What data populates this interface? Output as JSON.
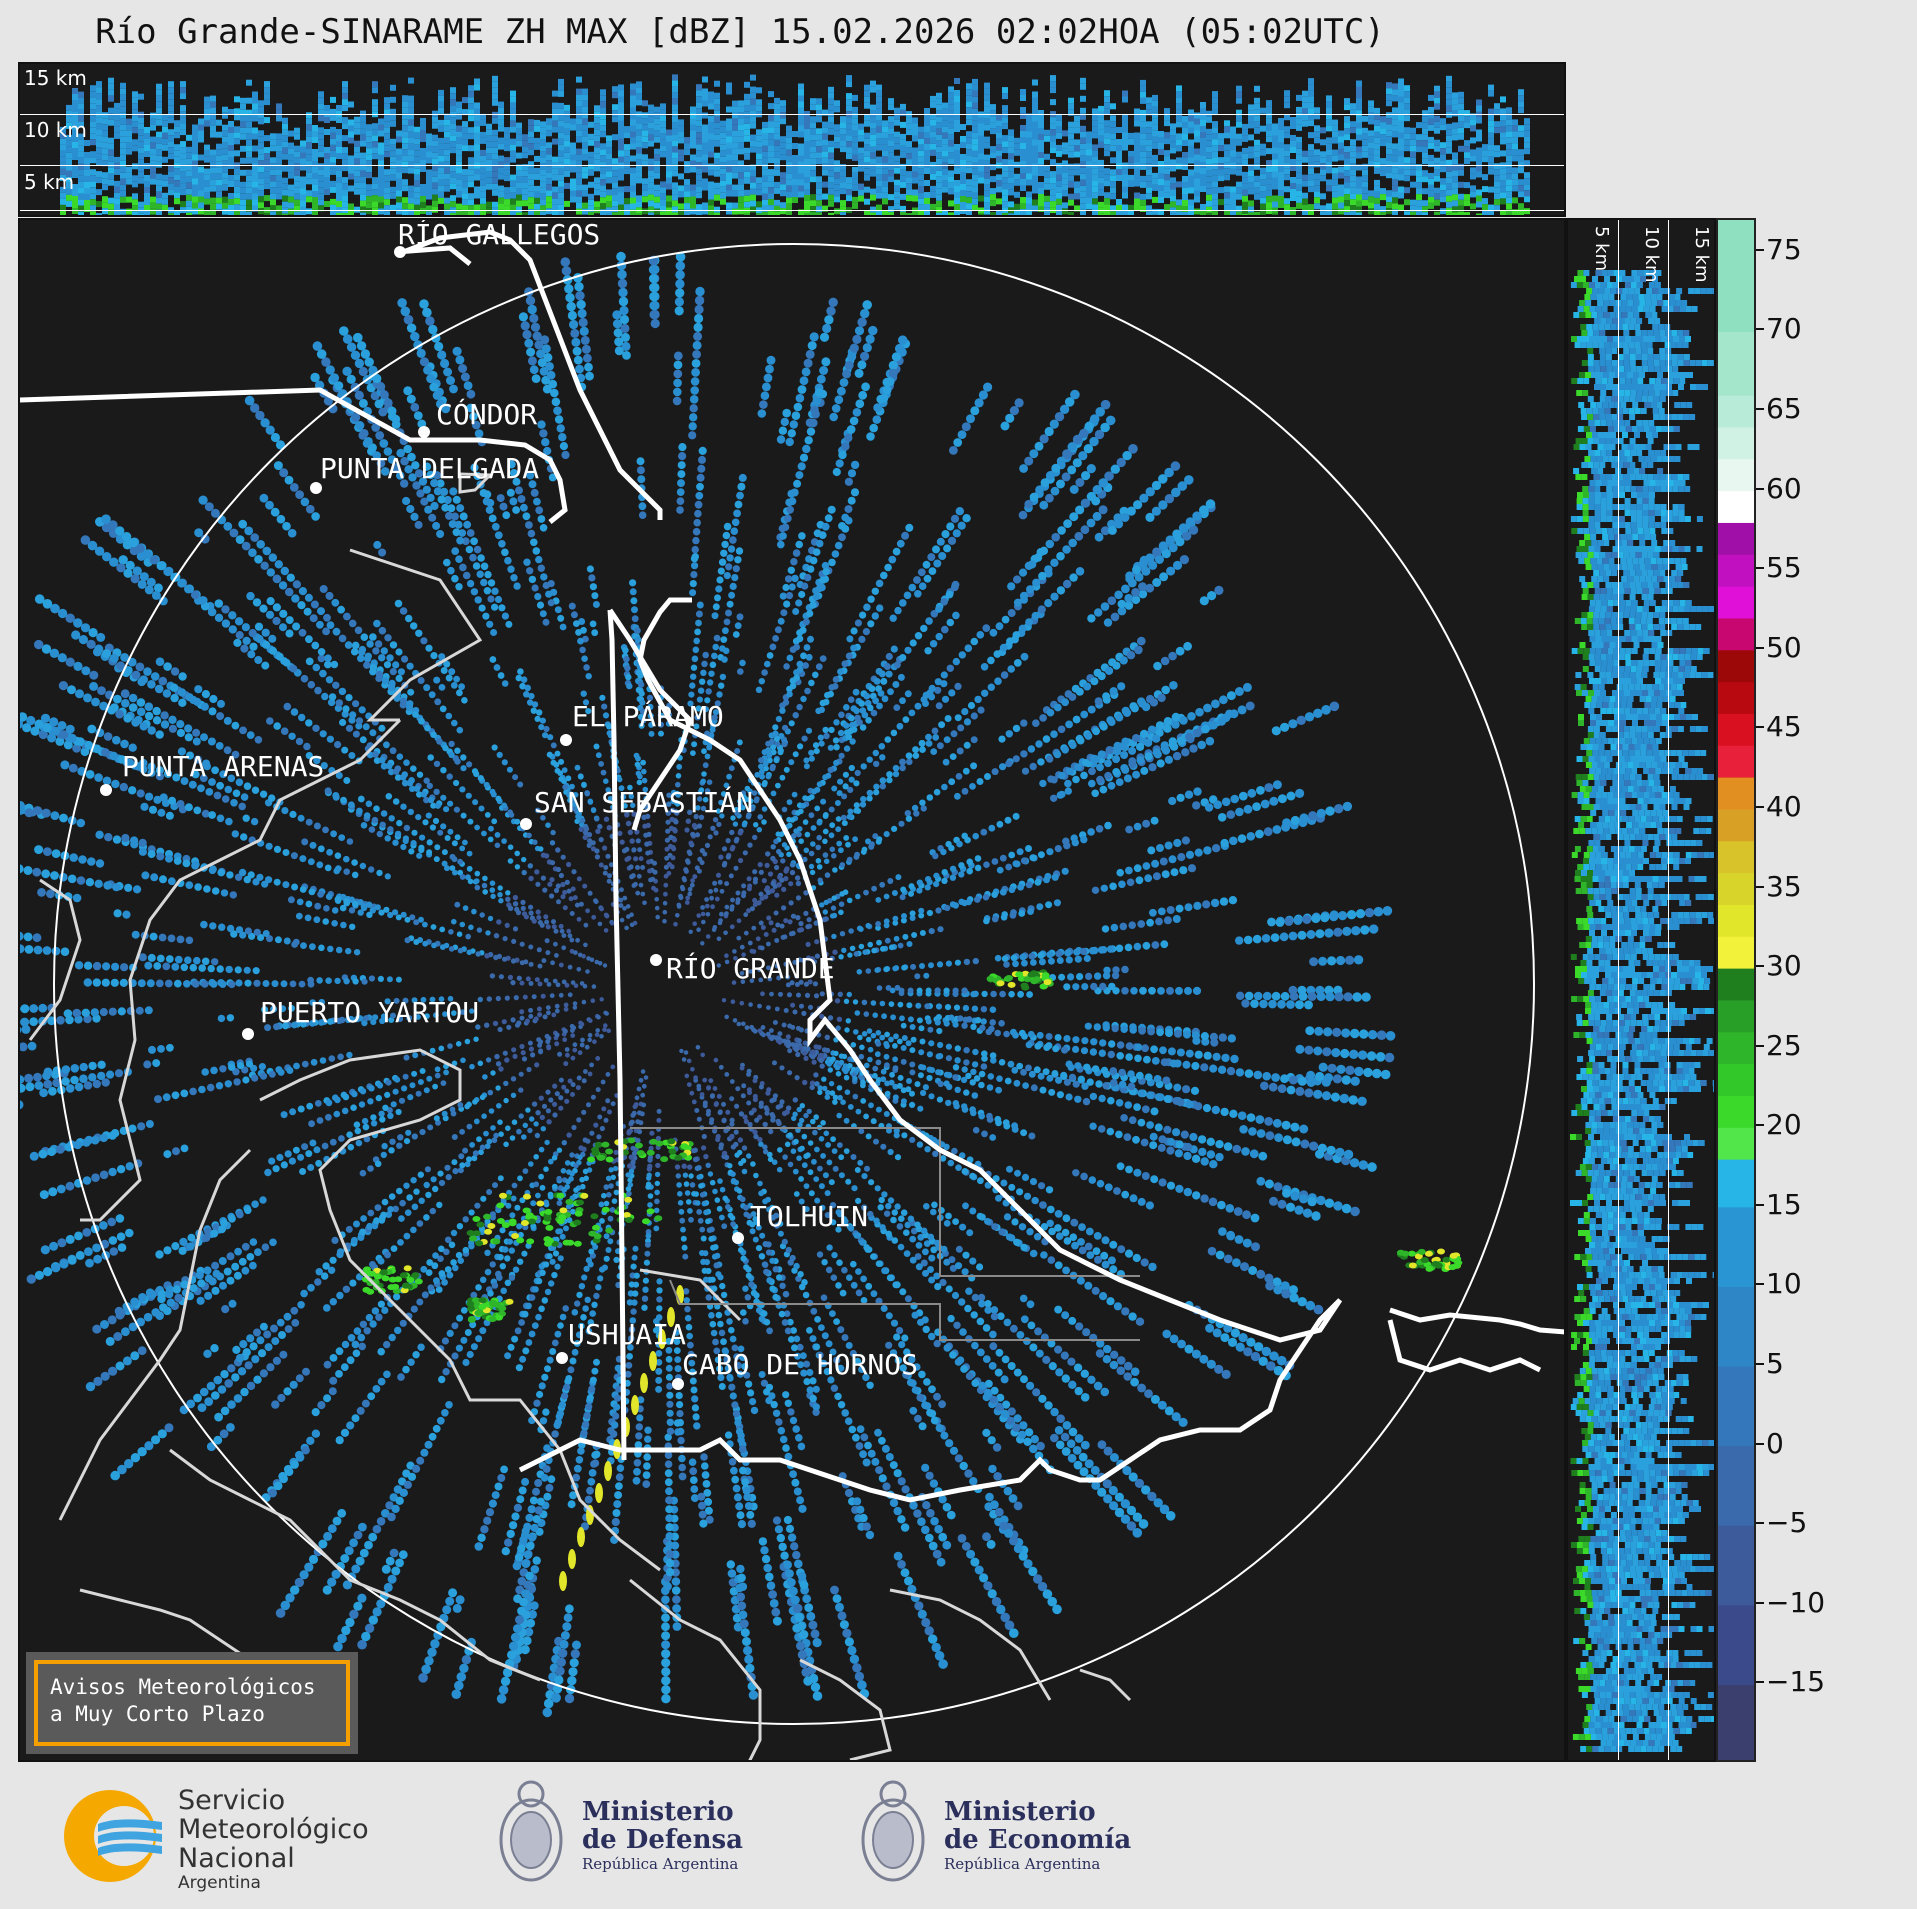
{
  "title": "Río Grande-SINARAME ZH MAX [dBZ] 15.02.2026 02:02HOA (05:02UTC)",
  "top_panel": {
    "altitude_labels": [
      "15 km",
      "10 km",
      "5 km"
    ]
  },
  "side_panel": {
    "altitude_labels": [
      "5 km",
      "10 km",
      "15 km"
    ]
  },
  "colorbar": {
    "unit": "dBZ",
    "ticks": [
      "75",
      "70",
      "65",
      "60",
      "55",
      "50",
      "45",
      "40",
      "35",
      "30",
      "25",
      "20",
      "15",
      "10",
      "5",
      "0",
      "−5",
      "−10",
      "−15"
    ],
    "range": [
      -20,
      77
    ],
    "colors": {
      "blue_range": "#2a8fd0",
      "green_range": "#3ad92a",
      "yellow_range": "#e2e62a",
      "orange_range": "#e08f20",
      "red_range": "#d81020",
      "magenta_range": "#e010d8",
      "white_60": "#ffffff",
      "mint_range": "#8fe0c0"
    }
  },
  "cities": [
    {
      "name": "RÍO GALLEGOS"
    },
    {
      "name": "CÓNDOR"
    },
    {
      "name": "PUNTA DELGADA"
    },
    {
      "name": "EL PÁRAMO"
    },
    {
      "name": "PUNTA ARENAS"
    },
    {
      "name": "SAN SEBASTIÁN"
    },
    {
      "name": "RÍO GRANDE"
    },
    {
      "name": "PUERTO YARTOU"
    },
    {
      "name": "TOLHUIN"
    },
    {
      "name": "USHUAIA"
    },
    {
      "name": "CABO DE HORNOS"
    }
  ],
  "notice": {
    "line1": "Avisos Meteorológicos",
    "line2": "a Muy Corto Plazo"
  },
  "logos": {
    "smn": {
      "line1": "Servicio",
      "line2": "Meteorológico",
      "line3": "Nacional",
      "line4": "Argentina"
    },
    "defensa": {
      "line1": "Ministerio",
      "line2": "de Defensa",
      "line3": "República Argentina"
    },
    "economia": {
      "line1": "Ministerio",
      "line2": "de Economía",
      "line3": "República Argentina"
    }
  }
}
